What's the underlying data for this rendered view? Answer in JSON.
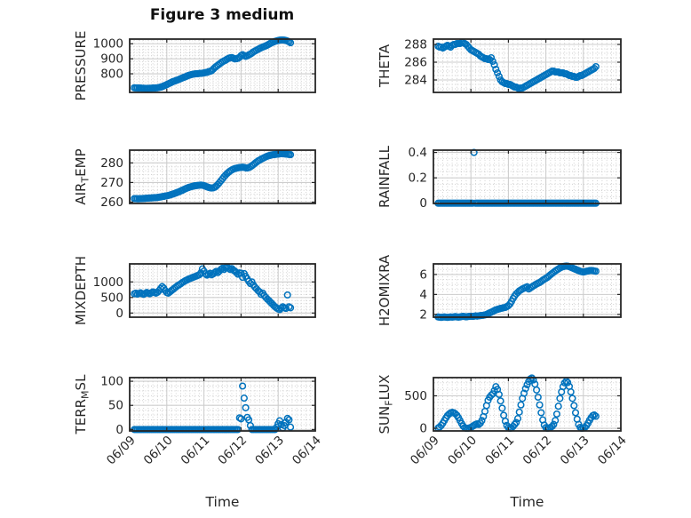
{
  "figure": {
    "title": "Figure 3 medium",
    "xlabel": "Time",
    "background": "#ffffff",
    "colors": {
      "marker": "#0072BD",
      "axis": "#262626",
      "grid_major": "#cdcdcd",
      "grid_minor": "#c6c6c6",
      "text": "#262626"
    }
  },
  "time_axis": {
    "tick_labels": [
      "06/09",
      "06/10",
      "06/11",
      "06/12",
      "06/13",
      "06/14"
    ],
    "xlim_days": [
      0,
      5
    ],
    "minor_step_days": 0.125,
    "t_start_days": 0.125,
    "dt_days": 0.0416667
  },
  "chart_data": [
    {
      "name": "PRESSURE",
      "type": "scatter",
      "row": 0,
      "col": 0,
      "ylabel_parts": [
        {
          "text": "PRESSURE",
          "sub": false
        }
      ],
      "ylim": [
        676,
        1031
      ],
      "yticks": [
        {
          "v": 800,
          "label": "800"
        },
        {
          "v": 900,
          "label": "900"
        },
        {
          "v": 1000,
          "label": "1000"
        }
      ],
      "minor_y_step": 20,
      "values": [
        707,
        706,
        706,
        705,
        705,
        704,
        704,
        703,
        703,
        703,
        704,
        704,
        705,
        705,
        706,
        707,
        709,
        711,
        714,
        719,
        723,
        728,
        733,
        738,
        743,
        748,
        751,
        755,
        759,
        763,
        768,
        772,
        776,
        780,
        784,
        789,
        792,
        795,
        797,
        799,
        800,
        801,
        802,
        803,
        804,
        806,
        808,
        810,
        814,
        817,
        821,
        831,
        841,
        849,
        857,
        865,
        873,
        880,
        886,
        891,
        897,
        903,
        906,
        908,
        903,
        899,
        900,
        903,
        910,
        921,
        927,
        921,
        916,
        920,
        926,
        931,
        938,
        946,
        952,
        957,
        963,
        968,
        973,
        978,
        982,
        986,
        991,
        997,
        1003,
        1008,
        1012,
        1016,
        1019,
        1022,
        1024,
        1025,
        1025,
        1024,
        1022,
        1018,
        1013,
        1007
      ]
    },
    {
      "name": "THETA",
      "type": "scatter",
      "row": 0,
      "col": 1,
      "ylabel_parts": [
        {
          "text": "THETA",
          "sub": false
        }
      ],
      "ylim": [
        282.6,
        288.6
      ],
      "yticks": [
        {
          "v": 284,
          "label": "284"
        },
        {
          "v": 286,
          "label": "286"
        },
        {
          "v": 288,
          "label": "288"
        }
      ],
      "minor_y_step": 0.5,
      "values": [
        287.8,
        287.7,
        287.7,
        287.6,
        287.7,
        287.8,
        287.9,
        287.8,
        287.7,
        287.9,
        288.0,
        288.0,
        288.1,
        288.1,
        288.1,
        288.2,
        288.2,
        288.1,
        288.0,
        287.8,
        287.6,
        287.4,
        287.3,
        287.2,
        287.1,
        287.0,
        286.9,
        286.7,
        286.6,
        286.5,
        286.4,
        286.4,
        286.3,
        286.3,
        286.5,
        286.1,
        285.7,
        285.2,
        284.8,
        284.4,
        284.0,
        283.8,
        283.7,
        283.6,
        283.6,
        283.5,
        283.5,
        283.4,
        283.3,
        283.2,
        283.2,
        283.1,
        283.0,
        283.1,
        283.1,
        283.2,
        283.3,
        283.4,
        283.5,
        283.6,
        283.7,
        283.8,
        283.9,
        284.0,
        284.1,
        284.2,
        284.3,
        284.4,
        284.5,
        284.6,
        284.7,
        284.8,
        284.9,
        285.0,
        285.0,
        284.9,
        284.9,
        284.9,
        284.8,
        284.8,
        284.8,
        284.7,
        284.7,
        284.6,
        284.5,
        284.5,
        284.4,
        284.4,
        284.3,
        284.3,
        284.4,
        284.5,
        284.5,
        284.6,
        284.7,
        284.8,
        284.9,
        285.0,
        285.1,
        285.2,
        285.3,
        285.5
      ]
    },
    {
      "name": "AIR_TEMP",
      "type": "scatter",
      "row": 1,
      "col": 0,
      "ylabel_parts": [
        {
          "text": "AIR",
          "sub": false
        },
        {
          "text": "T",
          "sub": true
        },
        {
          "text": "EMP",
          "sub": false
        }
      ],
      "ylim": [
        259.3,
        286.5
      ],
      "yticks": [
        {
          "v": 260,
          "label": "260"
        },
        {
          "v": 270,
          "label": "270"
        },
        {
          "v": 280,
          "label": "280"
        }
      ],
      "minor_y_step": 2,
      "values": [
        261.8,
        261.8,
        261.7,
        261.7,
        261.8,
        261.8,
        261.9,
        261.9,
        262.0,
        262.0,
        262.1,
        262.1,
        262.2,
        262.3,
        262.3,
        262.4,
        262.5,
        262.6,
        262.8,
        262.9,
        263.1,
        263.2,
        263.4,
        263.6,
        263.9,
        264.1,
        264.4,
        264.7,
        265.0,
        265.3,
        265.7,
        266.0,
        266.4,
        266.8,
        267.1,
        267.4,
        267.7,
        267.9,
        268.1,
        268.3,
        268.4,
        268.5,
        268.6,
        268.7,
        268.6,
        268.4,
        268.1,
        267.8,
        267.5,
        267.3,
        267.2,
        267.3,
        267.6,
        268.2,
        269.0,
        269.9,
        270.9,
        271.9,
        272.9,
        273.8,
        274.6,
        275.3,
        275.9,
        276.4,
        276.8,
        277.1,
        277.3,
        277.5,
        277.6,
        277.7,
        277.8,
        277.7,
        277.5,
        277.4,
        277.6,
        278.0,
        278.5,
        279.1,
        279.8,
        280.4,
        281.0,
        281.4,
        281.9,
        282.3,
        282.7,
        283.1,
        283.4,
        283.7,
        283.9,
        284.1,
        284.2,
        284.3,
        284.4,
        284.5,
        284.6,
        284.7,
        284.7,
        284.6,
        284.5,
        284.4,
        284.3,
        284.2
      ]
    },
    {
      "name": "RAINFALL",
      "type": "scatter",
      "row": 1,
      "col": 1,
      "ylabel_parts": [
        {
          "text": "RAINFALL",
          "sub": false
        }
      ],
      "ylim": [
        -0.002,
        0.418
      ],
      "yticks": [
        {
          "v": 0,
          "label": "0"
        },
        {
          "v": 0.2,
          "label": "0.2"
        },
        {
          "v": 0.4,
          "label": "0.4"
        }
      ],
      "minor_y_step": 0.05,
      "values": [
        0,
        0,
        0,
        0,
        0,
        0,
        0,
        0,
        0,
        0,
        0,
        0,
        0,
        0,
        0,
        0,
        0,
        0,
        0,
        0,
        0,
        0,
        0,
        0.4,
        0,
        0,
        0,
        0,
        0,
        0,
        0,
        0,
        0,
        0,
        0,
        0,
        0,
        0,
        0,
        0,
        0,
        0,
        0,
        0,
        0,
        0,
        0,
        0,
        0,
        0,
        0,
        0,
        0,
        0,
        0,
        0,
        0,
        0,
        0,
        0,
        0,
        0,
        0,
        0,
        0,
        0,
        0,
        0,
        0,
        0,
        0,
        0,
        0,
        0,
        0,
        0,
        0,
        0,
        0,
        0,
        0,
        0,
        0,
        0,
        0,
        0,
        0,
        0,
        0,
        0,
        0,
        0,
        0,
        0,
        0,
        0,
        0,
        0,
        0,
        0,
        0,
        0
      ]
    },
    {
      "name": "MIXDEPTH",
      "type": "scatter",
      "row": 2,
      "col": 0,
      "ylabel_parts": [
        {
          "text": "MIXDEPTH",
          "sub": false
        }
      ],
      "ylim": [
        -134,
        1580
      ],
      "yticks": [
        {
          "v": 0,
          "label": "0"
        },
        {
          "v": 500,
          "label": "500"
        },
        {
          "v": 1000,
          "label": "1000"
        }
      ],
      "minor_y_step": 100,
      "values": [
        620,
        640,
        610,
        630,
        650,
        620,
        600,
        630,
        660,
        640,
        620,
        650,
        680,
        660,
        640,
        670,
        720,
        790,
        850,
        800,
        720,
        660,
        640,
        680,
        720,
        760,
        800,
        840,
        880,
        910,
        940,
        980,
        1010,
        1040,
        1060,
        1090,
        1110,
        1130,
        1150,
        1170,
        1190,
        1210,
        1230,
        1290,
        1420,
        1350,
        1260,
        1220,
        1250,
        1280,
        1230,
        1260,
        1300,
        1340,
        1300,
        1350,
        1400,
        1440,
        1400,
        1450,
        1480,
        1440,
        1400,
        1430,
        1380,
        1350,
        1300,
        1250,
        1290,
        1280,
        1150,
        1270,
        1180,
        1100,
        1020,
        950,
        1000,
        900,
        830,
        780,
        720,
        680,
        600,
        640,
        560,
        500,
        450,
        400,
        350,
        300,
        250,
        200,
        160,
        130,
        110,
        160,
        200,
        170,
        150,
        580,
        200,
        170
      ]
    },
    {
      "name": "H2OMIXRA",
      "type": "scatter",
      "row": 2,
      "col": 1,
      "ylabel_parts": [
        {
          "text": "H2OMIXRA",
          "sub": false
        }
      ],
      "ylim": [
        1.72,
        7.06
      ],
      "yticks": [
        {
          "v": 2,
          "label": "2"
        },
        {
          "v": 4,
          "label": "4"
        },
        {
          "v": 6,
          "label": "6"
        }
      ],
      "minor_y_step": 0.5,
      "values": [
        1.75,
        1.72,
        1.7,
        1.73,
        1.75,
        1.72,
        1.7,
        1.72,
        1.75,
        1.73,
        1.75,
        1.78,
        1.75,
        1.73,
        1.75,
        1.78,
        1.8,
        1.78,
        1.76,
        1.78,
        1.8,
        1.82,
        1.8,
        1.82,
        1.85,
        1.83,
        1.85,
        1.88,
        1.9,
        1.92,
        1.95,
        2.0,
        2.08,
        2.15,
        2.22,
        2.3,
        2.38,
        2.45,
        2.5,
        2.55,
        2.6,
        2.63,
        2.67,
        2.7,
        2.78,
        2.88,
        3.05,
        3.3,
        3.6,
        3.85,
        4.05,
        4.2,
        4.35,
        4.45,
        4.55,
        4.62,
        4.7,
        4.76,
        4.55,
        4.65,
        4.75,
        4.85,
        4.95,
        5.05,
        5.12,
        5.2,
        5.3,
        5.42,
        5.52,
        5.62,
        5.72,
        5.85,
        5.98,
        6.1,
        6.22,
        6.35,
        6.45,
        6.55,
        6.65,
        6.72,
        6.78,
        6.82,
        6.85,
        6.83,
        6.78,
        6.72,
        6.65,
        6.58,
        6.52,
        6.45,
        6.38,
        6.32,
        6.28,
        6.25,
        6.28,
        6.32,
        6.35,
        6.38,
        6.4,
        6.38,
        6.35,
        6.32
      ]
    },
    {
      "name": "TERR_MSL",
      "type": "scatter",
      "row": 3,
      "col": 0,
      "show_x_labels": true,
      "ylabel_parts": [
        {
          "text": "TERR",
          "sub": false
        },
        {
          "text": "M",
          "sub": true
        },
        {
          "text": "SL",
          "sub": false
        }
      ],
      "ylim": [
        -3,
        107.5
      ],
      "yticks": [
        {
          "v": 0,
          "label": "0"
        },
        {
          "v": 50,
          "label": "50"
        },
        {
          "v": 100,
          "label": "100"
        }
      ],
      "minor_y_step": 10,
      "values": [
        0,
        0,
        0,
        0,
        0,
        0,
        0,
        0,
        0,
        0,
        0,
        0,
        0,
        0,
        0,
        0,
        0,
        0,
        0,
        0,
        0,
        0,
        0,
        0,
        0,
        0,
        0,
        0,
        0,
        0,
        0,
        0,
        0,
        0,
        0,
        0,
        0,
        0,
        0,
        0,
        0,
        0,
        0,
        0,
        0,
        0,
        0,
        0,
        0,
        0,
        0,
        0,
        0,
        0,
        0,
        0,
        0,
        0,
        0,
        0,
        0,
        0,
        0,
        0,
        0,
        0,
        0,
        0,
        24,
        22,
        90,
        65,
        45,
        25,
        20,
        8,
        0,
        0,
        0,
        0,
        0,
        0,
        0,
        0,
        0,
        0,
        0,
        0,
        0,
        0,
        0,
        0,
        5,
        12,
        18,
        10,
        3,
        8,
        15,
        23,
        20,
        5
      ]
    },
    {
      "name": "SUN_FLUX",
      "type": "scatter",
      "row": 3,
      "col": 1,
      "show_x_labels": true,
      "ylabel_parts": [
        {
          "text": "SUN",
          "sub": false
        },
        {
          "text": "F",
          "sub": true
        },
        {
          "text": "LUX",
          "sub": false
        }
      ],
      "ylim": [
        -40,
        780
      ],
      "yticks": [
        {
          "v": 0,
          "label": "0"
        },
        {
          "v": 500,
          "label": "500"
        }
      ],
      "minor_y_step": 100,
      "values": [
        5,
        20,
        45,
        80,
        120,
        160,
        195,
        220,
        238,
        245,
        240,
        225,
        200,
        165,
        120,
        75,
        35,
        10,
        0,
        0,
        5,
        15,
        30,
        45,
        60,
        70,
        60,
        80,
        120,
        180,
        260,
        350,
        430,
        480,
        510,
        530,
        580,
        640,
        600,
        520,
        420,
        310,
        200,
        110,
        45,
        10,
        0,
        5,
        30,
        60,
        90,
        150,
        250,
        360,
        460,
        540,
        610,
        670,
        720,
        760,
        775,
        745,
        680,
        590,
        480,
        360,
        240,
        130,
        50,
        10,
        0,
        5,
        15,
        30,
        60,
        120,
        220,
        340,
        460,
        560,
        640,
        700,
        725,
        705,
        645,
        560,
        460,
        350,
        240,
        140,
        60,
        15,
        0,
        5,
        15,
        40,
        80,
        125,
        165,
        195,
        205,
        185
      ]
    }
  ]
}
